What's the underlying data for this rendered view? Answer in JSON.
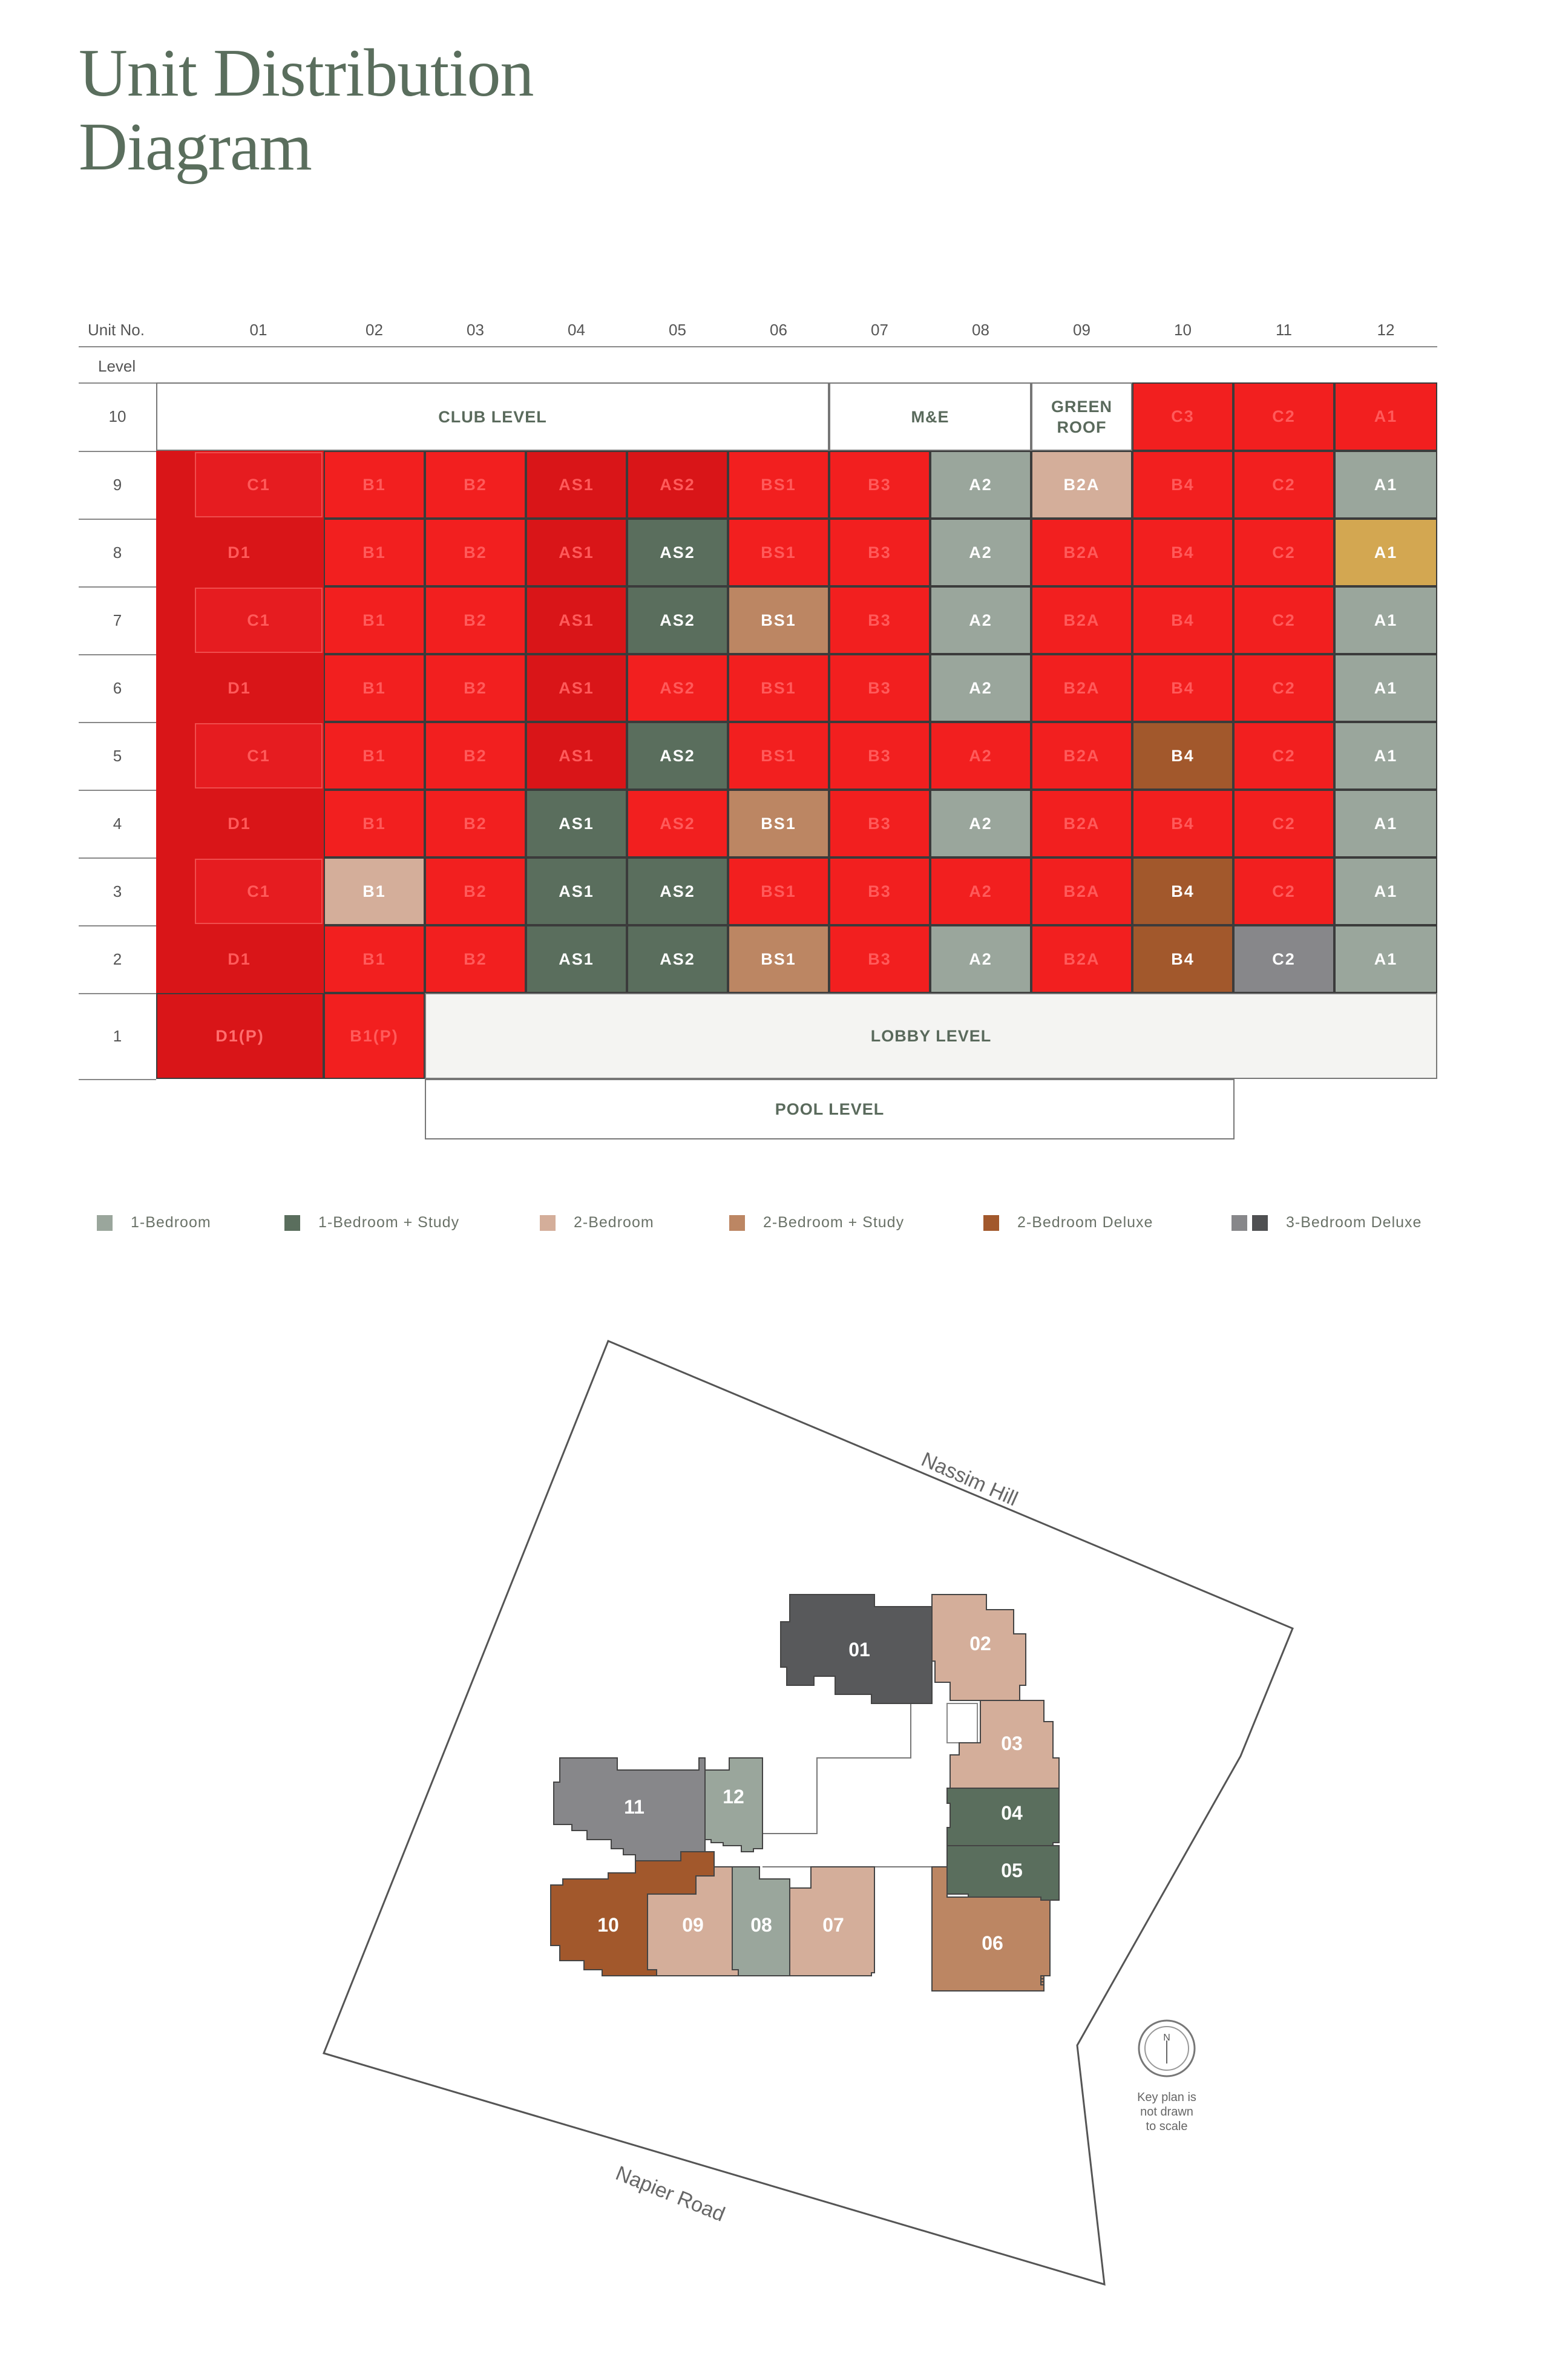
{
  "title": {
    "line1": "Unit Distribution",
    "line2": "Diagram"
  },
  "header": {
    "unit_no": "Unit No.",
    "level": "Level",
    "units": [
      "01",
      "02",
      "03",
      "04",
      "05",
      "06",
      "07",
      "08",
      "09",
      "10",
      "11",
      "12"
    ]
  },
  "colors": {
    "1br": "#9aa69c",
    "1brs": "#5a6e5d",
    "2br": "#d4ae9a",
    "2brs": "#bc8663",
    "2brd": "#a2582c",
    "3brd_light": "#87878a",
    "3brd_dark": "#4f5052",
    "red": "#f21f1f",
    "red_dark": "#d91518",
    "gold": "#d3a751"
  },
  "zones": {
    "club_level": "CLUB LEVEL",
    "me": "M&E",
    "green_roof": "GREEN ROOF",
    "lobby_level": "LOBBY LEVEL",
    "pool_level": "POOL LEVEL"
  },
  "rows": [
    {
      "level": "10",
      "cells": [
        null,
        null,
        null,
        null,
        null,
        null,
        null,
        null,
        null,
        {
          "t": "C3",
          "c": "red"
        },
        {
          "t": "C2",
          "c": "red"
        },
        {
          "t": "A1",
          "c": "red"
        }
      ]
    },
    {
      "level": "9",
      "cells": [
        {
          "t": "C1",
          "c": "red"
        },
        {
          "t": "B1",
          "c": "red"
        },
        {
          "t": "B2",
          "c": "red"
        },
        {
          "t": "AS1",
          "c": "red_dark"
        },
        {
          "t": "AS2",
          "c": "red_dark"
        },
        {
          "t": "BS1",
          "c": "red"
        },
        {
          "t": "B3",
          "c": "red"
        },
        {
          "t": "A2",
          "c": "1br"
        },
        {
          "t": "B2A",
          "c": "2br"
        },
        {
          "t": "B4",
          "c": "red"
        },
        {
          "t": "C2",
          "c": "red"
        },
        {
          "t": "A1",
          "c": "1br"
        }
      ]
    },
    {
      "level": "8",
      "cells": [
        {
          "t": "D1",
          "c": "red"
        },
        {
          "t": "B1",
          "c": "red"
        },
        {
          "t": "B2",
          "c": "red"
        },
        {
          "t": "AS1",
          "c": "red_dark"
        },
        {
          "t": "AS2",
          "c": "1brs"
        },
        {
          "t": "BS1",
          "c": "red"
        },
        {
          "t": "B3",
          "c": "red"
        },
        {
          "t": "A2",
          "c": "1br"
        },
        {
          "t": "B2A",
          "c": "red"
        },
        {
          "t": "B4",
          "c": "red"
        },
        {
          "t": "C2",
          "c": "red"
        },
        {
          "t": "A1",
          "c": "gold"
        }
      ]
    },
    {
      "level": "7",
      "cells": [
        {
          "t": "C1",
          "c": "red"
        },
        {
          "t": "B1",
          "c": "red"
        },
        {
          "t": "B2",
          "c": "red"
        },
        {
          "t": "AS1",
          "c": "red_dark"
        },
        {
          "t": "AS2",
          "c": "1brs"
        },
        {
          "t": "BS1",
          "c": "2brs"
        },
        {
          "t": "B3",
          "c": "red"
        },
        {
          "t": "A2",
          "c": "1br"
        },
        {
          "t": "B2A",
          "c": "red"
        },
        {
          "t": "B4",
          "c": "red"
        },
        {
          "t": "C2",
          "c": "red"
        },
        {
          "t": "A1",
          "c": "1br"
        }
      ]
    },
    {
      "level": "6",
      "cells": [
        {
          "t": "D1",
          "c": "red"
        },
        {
          "t": "B1",
          "c": "red"
        },
        {
          "t": "B2",
          "c": "red"
        },
        {
          "t": "AS1",
          "c": "red_dark"
        },
        {
          "t": "AS2",
          "c": "red"
        },
        {
          "t": "BS1",
          "c": "red"
        },
        {
          "t": "B3",
          "c": "red"
        },
        {
          "t": "A2",
          "c": "1br"
        },
        {
          "t": "B2A",
          "c": "red"
        },
        {
          "t": "B4",
          "c": "red"
        },
        {
          "t": "C2",
          "c": "red"
        },
        {
          "t": "A1",
          "c": "1br"
        }
      ]
    },
    {
      "level": "5",
      "cells": [
        {
          "t": "C1",
          "c": "red"
        },
        {
          "t": "B1",
          "c": "red"
        },
        {
          "t": "B2",
          "c": "red"
        },
        {
          "t": "AS1",
          "c": "red_dark"
        },
        {
          "t": "AS2",
          "c": "1brs"
        },
        {
          "t": "BS1",
          "c": "red"
        },
        {
          "t": "B3",
          "c": "red"
        },
        {
          "t": "A2",
          "c": "red"
        },
        {
          "t": "B2A",
          "c": "red"
        },
        {
          "t": "B4",
          "c": "2brd"
        },
        {
          "t": "C2",
          "c": "red"
        },
        {
          "t": "A1",
          "c": "1br"
        }
      ]
    },
    {
      "level": "4",
      "cells": [
        {
          "t": "D1",
          "c": "red"
        },
        {
          "t": "B1",
          "c": "red"
        },
        {
          "t": "B2",
          "c": "red"
        },
        {
          "t": "AS1",
          "c": "1brs"
        },
        {
          "t": "AS2",
          "c": "red"
        },
        {
          "t": "BS1",
          "c": "2brs"
        },
        {
          "t": "B3",
          "c": "red"
        },
        {
          "t": "A2",
          "c": "1br"
        },
        {
          "t": "B2A",
          "c": "red"
        },
        {
          "t": "B4",
          "c": "red"
        },
        {
          "t": "C2",
          "c": "red"
        },
        {
          "t": "A1",
          "c": "1br"
        }
      ]
    },
    {
      "level": "3",
      "cells": [
        {
          "t": "C1",
          "c": "red"
        },
        {
          "t": "B1",
          "c": "2br"
        },
        {
          "t": "B2",
          "c": "red"
        },
        {
          "t": "AS1",
          "c": "1brs"
        },
        {
          "t": "AS2",
          "c": "1brs"
        },
        {
          "t": "BS1",
          "c": "red"
        },
        {
          "t": "B3",
          "c": "red"
        },
        {
          "t": "A2",
          "c": "red"
        },
        {
          "t": "B2A",
          "c": "red"
        },
        {
          "t": "B4",
          "c": "2brd"
        },
        {
          "t": "C2",
          "c": "red"
        },
        {
          "t": "A1",
          "c": "1br"
        }
      ]
    },
    {
      "level": "2",
      "cells": [
        {
          "t": "D1",
          "c": "red"
        },
        {
          "t": "B1",
          "c": "red"
        },
        {
          "t": "B2",
          "c": "red"
        },
        {
          "t": "AS1",
          "c": "1brs"
        },
        {
          "t": "AS2",
          "c": "1brs"
        },
        {
          "t": "BS1",
          "c": "2brs"
        },
        {
          "t": "B3",
          "c": "red"
        },
        {
          "t": "A2",
          "c": "1br"
        },
        {
          "t": "B2A",
          "c": "red"
        },
        {
          "t": "B4",
          "c": "2brd"
        },
        {
          "t": "C2",
          "c": "3brd_light"
        },
        {
          "t": "A1",
          "c": "1br"
        }
      ]
    },
    {
      "level": "1",
      "cells": [
        {
          "t": "D1(P)",
          "c": "red"
        },
        {
          "t": "B1(P)",
          "c": "red"
        }
      ]
    }
  ],
  "legend": [
    {
      "label": "1-Bedroom",
      "colors": [
        "#9aa69c"
      ]
    },
    {
      "label": "1-Bedroom + Study",
      "colors": [
        "#5a6e5d"
      ]
    },
    {
      "label": "2-Bedroom",
      "colors": [
        "#d4ae9a"
      ]
    },
    {
      "label": "2-Bedroom + Study",
      "colors": [
        "#bc8663"
      ]
    },
    {
      "label": "2-Bedroom Deluxe",
      "colors": [
        "#a2582c"
      ]
    },
    {
      "label": "3-Bedroom Deluxe",
      "colors": [
        "#87878a",
        "#4f5052"
      ]
    }
  ],
  "keyplan": {
    "road_north": "Nassim Hill",
    "road_south": "Napier Road",
    "compass_letter": "N",
    "note": [
      "Key plan is",
      "not drawn",
      "to scale"
    ],
    "units": [
      {
        "label": "01",
        "color": "#58595b"
      },
      {
        "label": "02",
        "color": "#d4ae9a"
      },
      {
        "label": "03",
        "color": "#d4ae9a"
      },
      {
        "label": "04",
        "color": "#5a6e5d"
      },
      {
        "label": "05",
        "color": "#5a6e5d"
      },
      {
        "label": "06",
        "color": "#bc8663"
      },
      {
        "label": "07",
        "color": "#d4ae9a"
      },
      {
        "label": "08",
        "color": "#9aa69c"
      },
      {
        "label": "09",
        "color": "#d4ae9a"
      },
      {
        "label": "10",
        "color": "#a2582c"
      },
      {
        "label": "11",
        "color": "#87878a"
      },
      {
        "label": "12",
        "color": "#9aa69c"
      }
    ]
  }
}
